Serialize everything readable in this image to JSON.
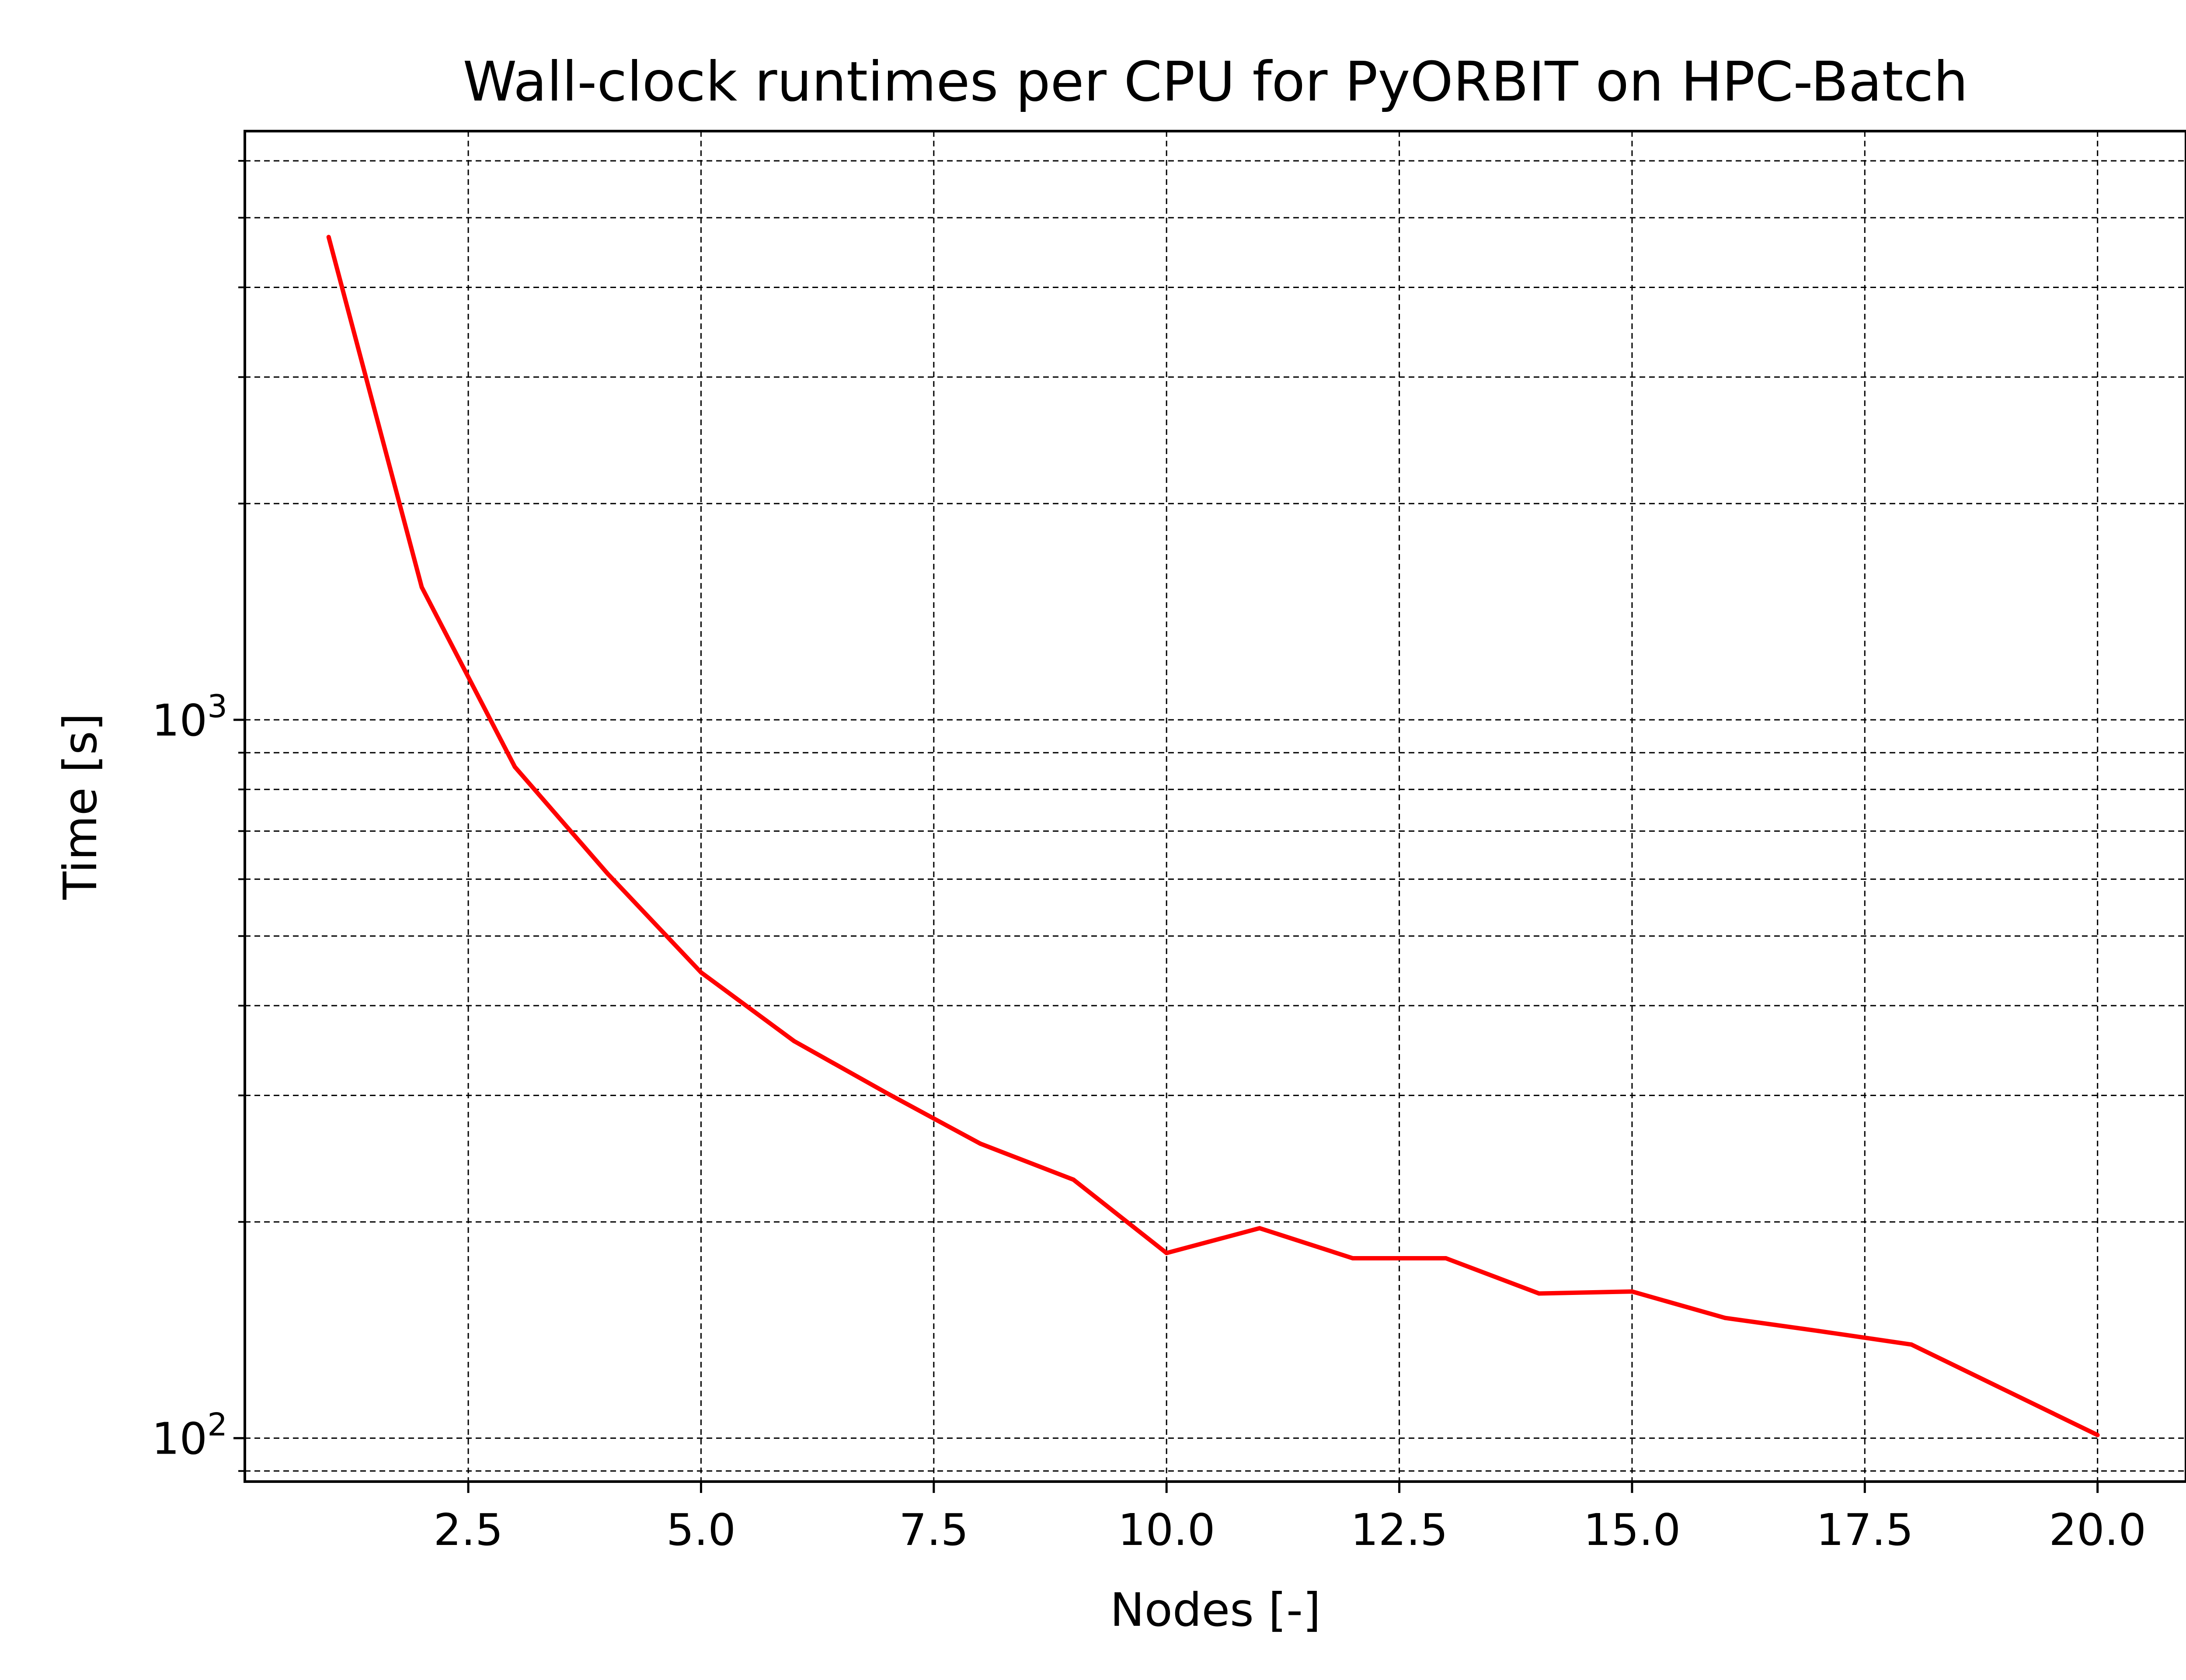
{
  "chart_data": {
    "type": "line",
    "title": "Wall-clock runtimes per CPU for PyORBIT on HPC-Batch",
    "xlabel": "Nodes [-]",
    "ylabel": "Time [s]",
    "xlim": [
      0.1,
      20.95
    ],
    "ylim": [
      87,
      6600
    ],
    "yscale": "log",
    "grid": true,
    "grid_style": "dashed",
    "x_ticks": [
      2.5,
      5.0,
      7.5,
      10.0,
      12.5,
      15.0,
      17.5,
      20.0
    ],
    "x_tick_labels": [
      "2.5",
      "5.0",
      "7.5",
      "10.0",
      "12.5",
      "15.0",
      "17.5",
      "20.0"
    ],
    "y_major_ticks": [
      {
        "value": 100,
        "base": "10",
        "exponent": "2"
      },
      {
        "value": 1000,
        "base": "10",
        "exponent": "3"
      }
    ],
    "y_minor_ticks": [
      90,
      200,
      300,
      400,
      500,
      600,
      700,
      800,
      900,
      2000,
      3000,
      4000,
      5000,
      6000
    ],
    "series": [
      {
        "color": "#ff0000",
        "x": [
          1,
          2,
          3,
          4,
          5,
          6,
          7,
          8,
          9,
          10,
          11,
          12,
          13,
          14,
          15,
          16,
          17,
          18,
          20
        ],
        "y": [
          4700,
          1530,
          860,
          610,
          445,
          357,
          302,
          257,
          229,
          181,
          196,
          178,
          178,
          159,
          160,
          147,
          141,
          135,
          101
        ]
      }
    ]
  }
}
